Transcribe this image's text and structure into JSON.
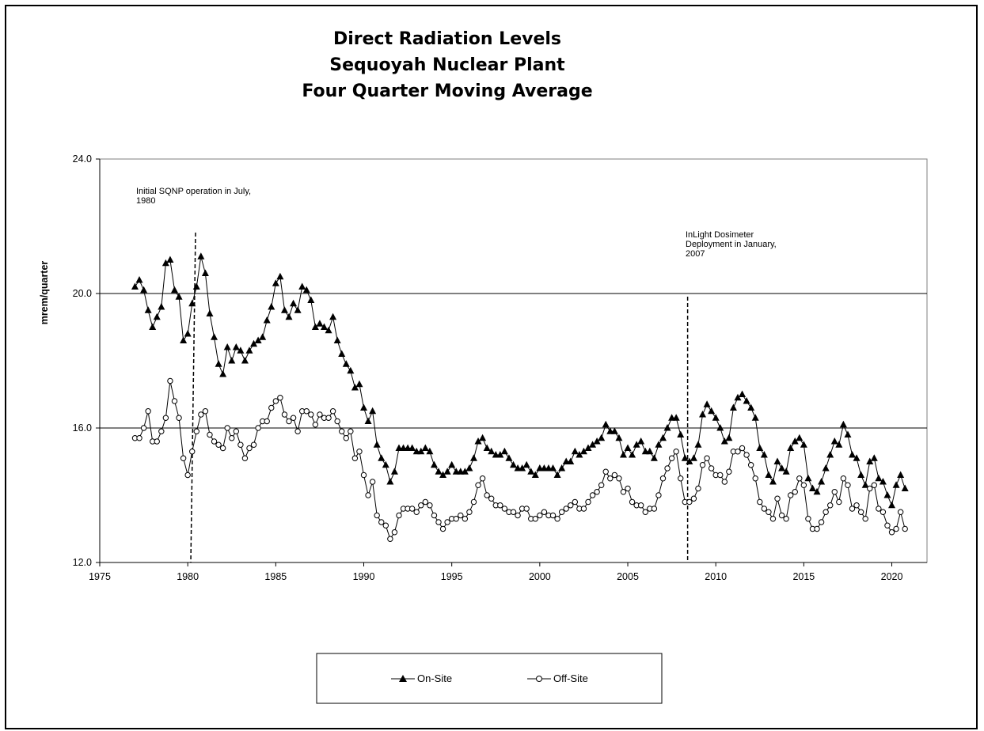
{
  "chart_data": {
    "type": "line",
    "title": [
      "Direct Radiation Levels",
      "Sequoyah Nuclear Plant",
      "Four Quarter Moving Average"
    ],
    "ylabel": "mrem/quarter",
    "xlabel": "",
    "xlim": [
      1975,
      2022
    ],
    "ylim": [
      12.0,
      24.0
    ],
    "x_ticks": [
      "1975",
      "1980",
      "1985",
      "1990",
      "1995",
      "2000",
      "2005",
      "2010",
      "2015",
      "2020"
    ],
    "y_ticks": [
      "12.0",
      "16.0",
      "20.0",
      "24.0"
    ],
    "gridlines_y": [
      16.0,
      20.0
    ],
    "legend_position": "bottom",
    "x_start": 1977.0,
    "x_step": 0.25,
    "annotations": [
      {
        "text": [
          "Initial SQNP operation in July,",
          "1980"
        ],
        "x": 1980.5
      },
      {
        "text": [
          "InLight Dosimeter",
          "Deployment in January,",
          "2007"
        ],
        "x": 2008.4
      }
    ],
    "series": [
      {
        "name": "On-Site",
        "marker": "triangle",
        "values": [
          20.2,
          20.4,
          20.1,
          19.5,
          19.0,
          19.3,
          19.6,
          20.9,
          21.0,
          20.1,
          19.9,
          18.6,
          18.8,
          19.7,
          20.2,
          21.1,
          20.6,
          19.4,
          18.7,
          17.9,
          17.6,
          18.4,
          18.0,
          18.4,
          18.3,
          18.0,
          18.3,
          18.5,
          18.6,
          18.7,
          19.2,
          19.6,
          20.3,
          20.5,
          19.5,
          19.3,
          19.7,
          19.5,
          20.2,
          20.1,
          19.8,
          19.0,
          19.1,
          19.0,
          18.9,
          19.3,
          18.6,
          18.2,
          17.9,
          17.7,
          17.2,
          17.3,
          16.6,
          16.2,
          16.5,
          15.5,
          15.1,
          14.9,
          14.4,
          14.7,
          15.4,
          15.4,
          15.4,
          15.4,
          15.3,
          15.3,
          15.4,
          15.3,
          14.9,
          14.7,
          14.6,
          14.7,
          14.9,
          14.7,
          14.7,
          14.7,
          14.8,
          15.1,
          15.6,
          15.7,
          15.4,
          15.3,
          15.2,
          15.2,
          15.3,
          15.1,
          14.9,
          14.8,
          14.8,
          14.9,
          14.7,
          14.6,
          14.8,
          14.8,
          14.8,
          14.8,
          14.6,
          14.8,
          15.0,
          15.0,
          15.3,
          15.2,
          15.3,
          15.4,
          15.5,
          15.6,
          15.7,
          16.1,
          15.9,
          15.9,
          15.7,
          15.2,
          15.4,
          15.2,
          15.5,
          15.6,
          15.3,
          15.3,
          15.1,
          15.5,
          15.7,
          16.0,
          16.3,
          16.3,
          15.8,
          15.1,
          15.0,
          15.1,
          15.5,
          16.4,
          16.7,
          16.5,
          16.3,
          16.0,
          15.6,
          15.7,
          16.6,
          16.9,
          17.0,
          16.8,
          16.6,
          16.3,
          15.4,
          15.2,
          14.6,
          14.4,
          15.0,
          14.8,
          14.7,
          15.4,
          15.6,
          15.7,
          15.5,
          14.5,
          14.2,
          14.1,
          14.4,
          14.8,
          15.2,
          15.6,
          15.5,
          16.1,
          15.8,
          15.2,
          15.1,
          14.6,
          14.3,
          15.0,
          15.1,
          14.5,
          14.4,
          14.0,
          13.7,
          14.3,
          14.6,
          14.2
        ]
      },
      {
        "name": "Off-Site",
        "marker": "circle",
        "values": [
          15.7,
          15.7,
          16.0,
          16.5,
          15.6,
          15.6,
          15.9,
          16.3,
          17.4,
          16.8,
          16.3,
          15.1,
          14.6,
          15.3,
          15.9,
          16.4,
          16.5,
          15.8,
          15.6,
          15.5,
          15.4,
          16.0,
          15.7,
          15.9,
          15.5,
          15.1,
          15.4,
          15.5,
          16.0,
          16.2,
          16.2,
          16.6,
          16.8,
          16.9,
          16.4,
          16.2,
          16.3,
          15.9,
          16.5,
          16.5,
          16.4,
          16.1,
          16.4,
          16.3,
          16.3,
          16.5,
          16.2,
          15.9,
          15.7,
          15.9,
          15.1,
          15.3,
          14.6,
          14.0,
          14.4,
          13.4,
          13.2,
          13.1,
          12.7,
          12.9,
          13.4,
          13.6,
          13.6,
          13.6,
          13.5,
          13.7,
          13.8,
          13.7,
          13.4,
          13.2,
          13.0,
          13.2,
          13.3,
          13.3,
          13.4,
          13.3,
          13.5,
          13.8,
          14.3,
          14.5,
          14.0,
          13.9,
          13.7,
          13.7,
          13.6,
          13.5,
          13.5,
          13.4,
          13.6,
          13.6,
          13.3,
          13.3,
          13.4,
          13.5,
          13.4,
          13.4,
          13.3,
          13.5,
          13.6,
          13.7,
          13.8,
          13.6,
          13.6,
          13.8,
          14.0,
          14.1,
          14.3,
          14.7,
          14.5,
          14.6,
          14.5,
          14.1,
          14.2,
          13.8,
          13.7,
          13.7,
          13.5,
          13.6,
          13.6,
          14.0,
          14.5,
          14.8,
          15.1,
          15.3,
          14.5,
          13.8,
          13.8,
          13.9,
          14.2,
          14.9,
          15.1,
          14.8,
          14.6,
          14.6,
          14.4,
          14.7,
          15.3,
          15.3,
          15.4,
          15.2,
          14.9,
          14.5,
          13.8,
          13.6,
          13.5,
          13.3,
          13.9,
          13.4,
          13.3,
          14.0,
          14.1,
          14.5,
          14.3,
          13.3,
          13.0,
          13.0,
          13.2,
          13.5,
          13.7,
          14.1,
          13.8,
          14.5,
          14.3,
          13.6,
          13.7,
          13.5,
          13.3,
          14.2,
          14.3,
          13.6,
          13.5,
          13.1,
          12.9,
          13.0,
          13.5,
          13.0
        ]
      }
    ]
  }
}
